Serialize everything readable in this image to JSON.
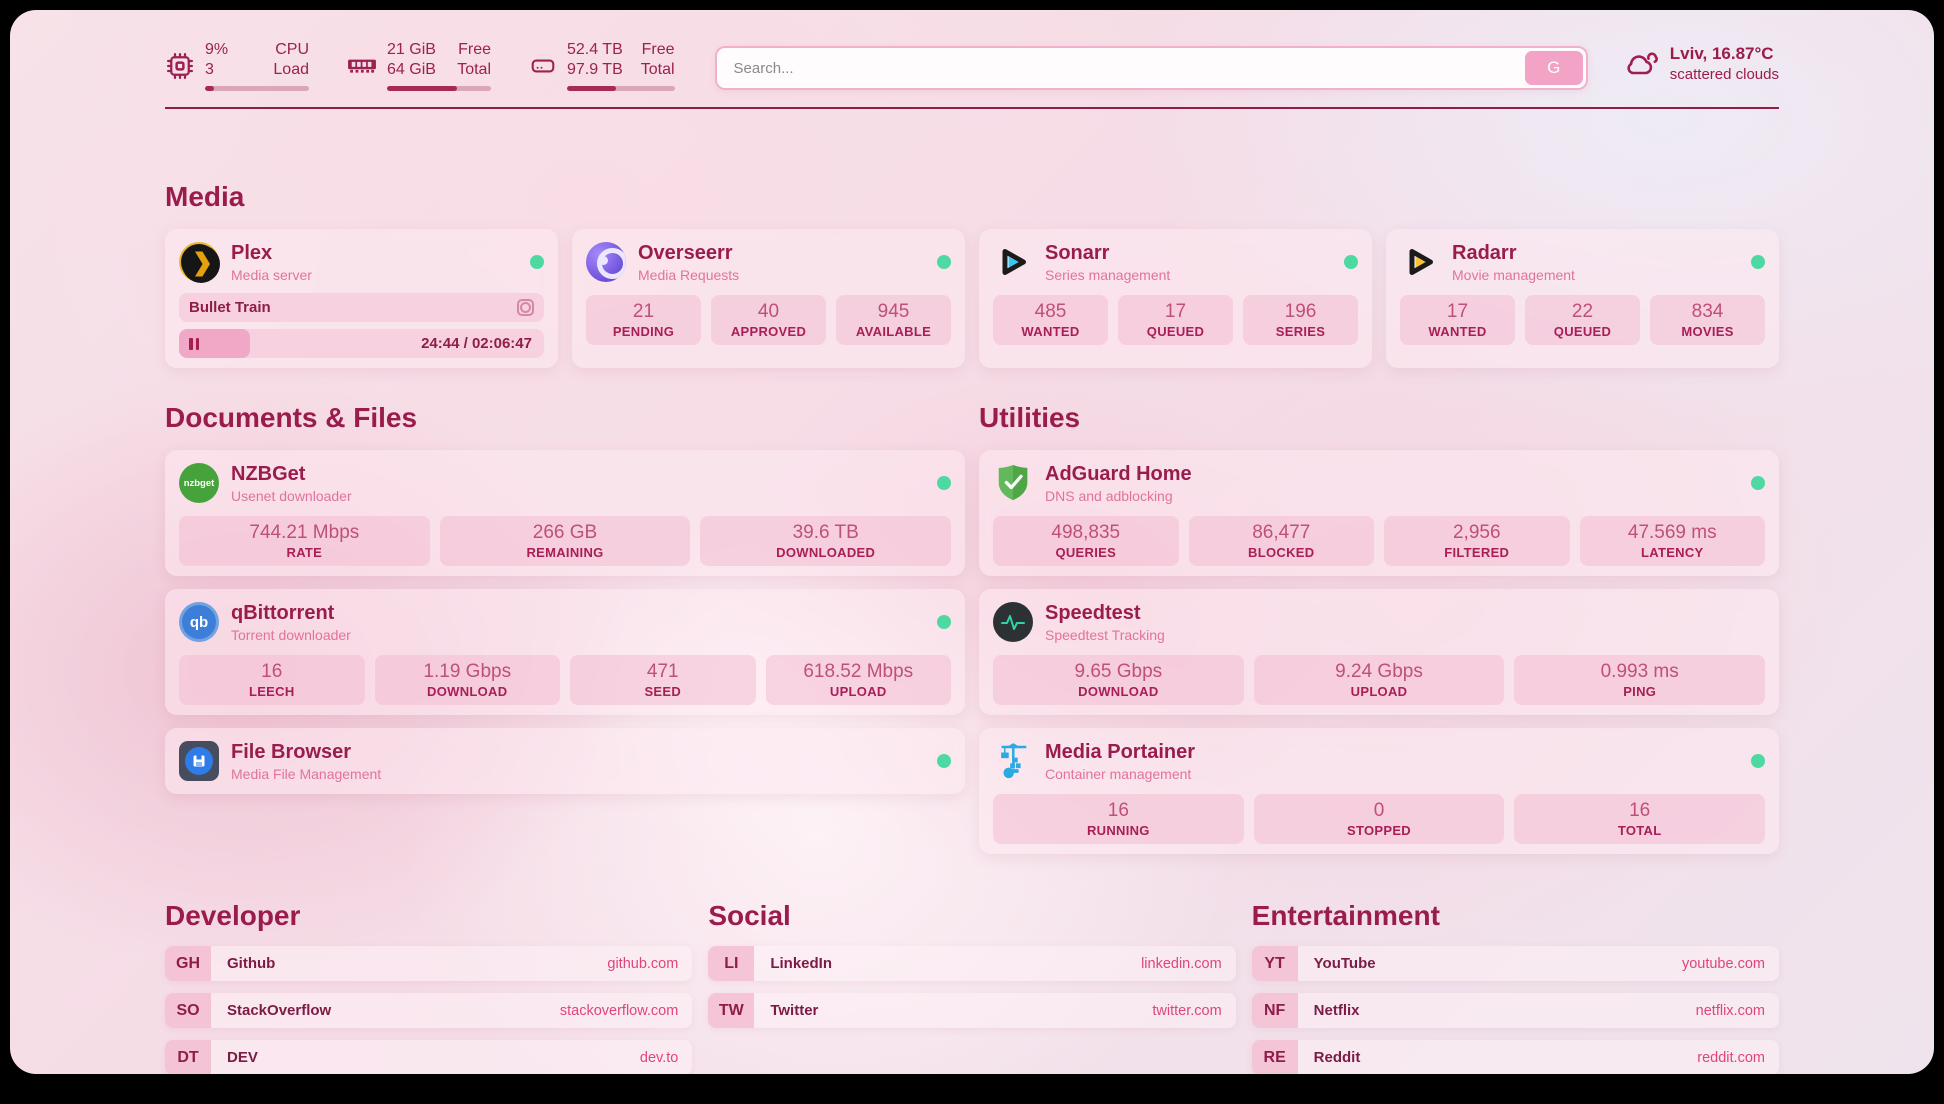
{
  "colors": {
    "accent": "#9a1c4c",
    "header_text": "#9c2150",
    "subtitle_pink": "#e2729c",
    "value_pink": "#bf5077",
    "label_crimson": "#a81e55",
    "url_pink": "#e0447e",
    "status_online": "#4ed9a2",
    "bar_fill": "#a62a55",
    "bar_track": "#dca6ba",
    "search_button": "#f2a3c6",
    "plex_gold": "#e5a00d",
    "sonarr_cyan": "#36c5f4",
    "radarr_yellow": "#ffc230",
    "nzbget_green": "#46a33c",
    "qbittorrent_blue": "#3d7fd8",
    "adguard_green": "#63b85c",
    "speedtest_green": "#2dd4a8",
    "portainer_blue": "#29abe2"
  },
  "header": {
    "stats": [
      {
        "icon": "cpu-chip",
        "col1": [
          "9%",
          "3"
        ],
        "col2": [
          "CPU",
          "Load"
        ],
        "progress": 9
      },
      {
        "icon": "memory-ram",
        "col1": [
          "21 GiB",
          "64 GiB"
        ],
        "col2": [
          "Free",
          "Total"
        ],
        "progress": 67
      },
      {
        "icon": "storage-disk",
        "col1": [
          "52.4 TB",
          "97.9 TB"
        ],
        "col2": [
          "Free",
          "Total"
        ],
        "progress": 46
      }
    ],
    "search": {
      "placeholder": "Search...",
      "button_label": "G"
    },
    "weather": {
      "location_temp": "Lviv, 16.87°C",
      "condition": "scattered clouds"
    }
  },
  "sections": {
    "media": {
      "title": "Media",
      "plex": {
        "name": "Plex",
        "desc": "Media server",
        "now_playing": "Bullet Train",
        "time": "24:44 / 02:06:47",
        "progress": 19.5
      },
      "overseerr": {
        "name": "Overseerr",
        "desc": "Media Requests",
        "stats": [
          {
            "value": "21",
            "label": "PENDING"
          },
          {
            "value": "40",
            "label": "APPROVED"
          },
          {
            "value": "945",
            "label": "AVAILABLE"
          }
        ]
      },
      "sonarr": {
        "name": "Sonarr",
        "desc": "Series management",
        "stats": [
          {
            "value": "485",
            "label": "WANTED"
          },
          {
            "value": "17",
            "label": "QUEUED"
          },
          {
            "value": "196",
            "label": "SERIES"
          }
        ]
      },
      "radarr": {
        "name": "Radarr",
        "desc": "Movie management",
        "stats": [
          {
            "value": "17",
            "label": "WANTED"
          },
          {
            "value": "22",
            "label": "QUEUED"
          },
          {
            "value": "834",
            "label": "MOVIES"
          }
        ]
      }
    },
    "documents": {
      "title": "Documents & Files",
      "nzbget": {
        "name": "NZBGet",
        "desc": "Usenet downloader",
        "stats": [
          {
            "value": "744.21 Mbps",
            "label": "RATE"
          },
          {
            "value": "266 GB",
            "label": "REMAINING"
          },
          {
            "value": "39.6 TB",
            "label": "DOWNLOADED"
          }
        ]
      },
      "qbittorrent": {
        "name": "qBittorrent",
        "desc": "Torrent downloader",
        "stats": [
          {
            "value": "16",
            "label": "LEECH"
          },
          {
            "value": "1.19 Gbps",
            "label": "DOWNLOAD"
          },
          {
            "value": "471",
            "label": "SEED"
          },
          {
            "value": "618.52 Mbps",
            "label": "UPLOAD"
          }
        ]
      },
      "filebrowser": {
        "name": "File Browser",
        "desc": "Media File Management"
      }
    },
    "utilities": {
      "title": "Utilities",
      "adguard": {
        "name": "AdGuard Home",
        "desc": "DNS and adblocking",
        "stats": [
          {
            "value": "498,835",
            "label": "QUERIES"
          },
          {
            "value": "86,477",
            "label": "BLOCKED"
          },
          {
            "value": "2,956",
            "label": "FILTERED"
          },
          {
            "value": "47.569 ms",
            "label": "LATENCY"
          }
        ]
      },
      "speedtest": {
        "name": "Speedtest",
        "desc": "Speedtest Tracking",
        "stats": [
          {
            "value": "9.65 Gbps",
            "label": "DOWNLOAD"
          },
          {
            "value": "9.24 Gbps",
            "label": "UPLOAD"
          },
          {
            "value": "0.993 ms",
            "label": "PING"
          }
        ]
      },
      "portainer": {
        "name": "Media Portainer",
        "desc": "Container management",
        "stats": [
          {
            "value": "16",
            "label": "RUNNING"
          },
          {
            "value": "0",
            "label": "STOPPED"
          },
          {
            "value": "16",
            "label": "TOTAL"
          }
        ]
      }
    },
    "bookmarks": {
      "developer": {
        "title": "Developer",
        "links": [
          {
            "abbr": "GH",
            "name": "Github",
            "url": "github.com"
          },
          {
            "abbr": "SO",
            "name": "StackOverflow",
            "url": "stackoverflow.com"
          },
          {
            "abbr": "DT",
            "name": "DEV",
            "url": "dev.to"
          }
        ]
      },
      "social": {
        "title": "Social",
        "links": [
          {
            "abbr": "LI",
            "name": "LinkedIn",
            "url": "linkedin.com"
          },
          {
            "abbr": "TW",
            "name": "Twitter",
            "url": "twitter.com"
          }
        ]
      },
      "entertainment": {
        "title": "Entertainment",
        "links": [
          {
            "abbr": "YT",
            "name": "YouTube",
            "url": "youtube.com"
          },
          {
            "abbr": "NF",
            "name": "Netflix",
            "url": "netflix.com"
          },
          {
            "abbr": "RE",
            "name": "Reddit",
            "url": "reddit.com"
          }
        ]
      }
    }
  },
  "icons": {
    "nzbget_text": "nzbget",
    "qbittorrent_text": "qb"
  }
}
